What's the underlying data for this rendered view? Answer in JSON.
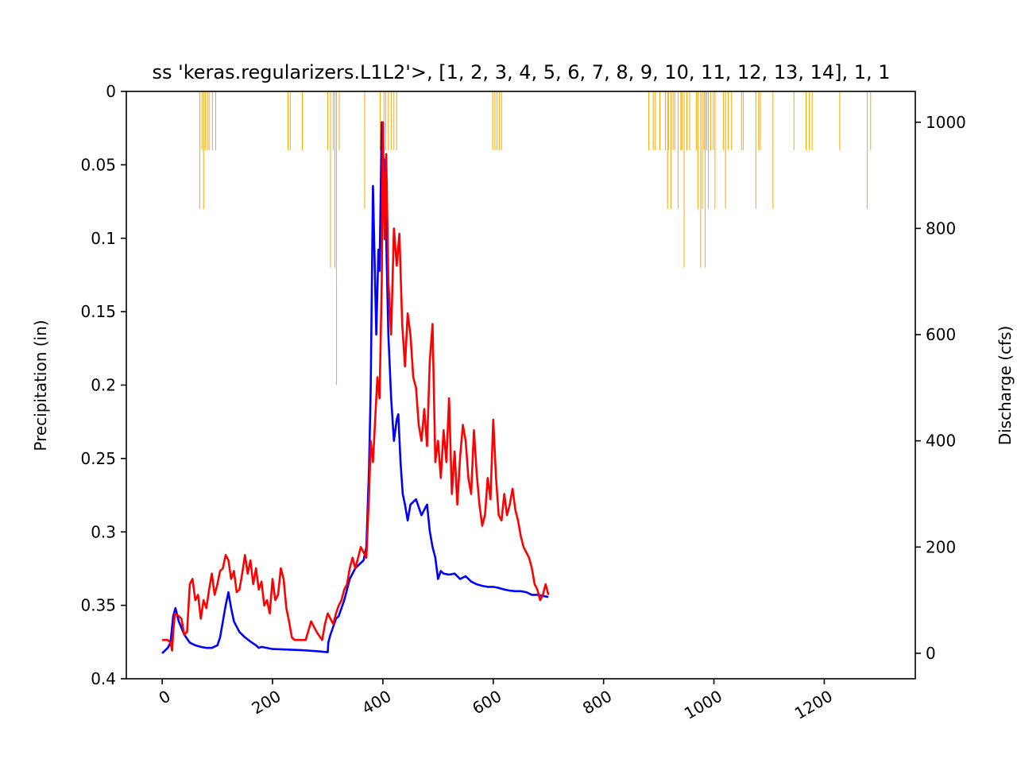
{
  "chart_data": {
    "type": "line",
    "title": "ss 'keras.regularizers.L1L2'>, [1, 2, 3, 4, 5, 6, 7, 8, 9, 10, 11, 12, 13, 14], 1, 1",
    "ylabel_left": "Precipitation (in)",
    "ylabel_right": "Discharge (cfs)",
    "xlim": [
      -65,
      1365
    ],
    "ylim_left": [
      0.4,
      0
    ],
    "ylim_right": [
      -48,
      1058
    ],
    "x_ticks": [
      0,
      200,
      400,
      600,
      800,
      1000,
      1200
    ],
    "y_left_ticks": [
      0,
      0.05,
      0.1,
      0.15,
      0.2,
      0.25,
      0.3,
      0.35,
      0.4
    ],
    "y_left_tick_labels": [
      "0",
      "0.05",
      "0.1",
      "0.15",
      "0.2",
      "0.25",
      "0.3",
      "0.35",
      "0.4"
    ],
    "y_right_ticks": [
      0,
      200,
      400,
      600,
      800,
      1000
    ],
    "grid": false,
    "precipitation": {
      "color": "#FFA500",
      "x": [
        68,
        72,
        75,
        78,
        82,
        85,
        91,
        97,
        228,
        232,
        254,
        300,
        305,
        310,
        313,
        316,
        321,
        367,
        395,
        402,
        405,
        410,
        415,
        420,
        425,
        599,
        603,
        607,
        611,
        615,
        882,
        890,
        894,
        902,
        912,
        916,
        918,
        922,
        926,
        929,
        935,
        940,
        942,
        946,
        951,
        956,
        968,
        971,
        976,
        979,
        982,
        984,
        987,
        990,
        994,
        999,
        1002,
        1017,
        1021,
        1026,
        1032,
        1050,
        1053,
        1076,
        1081,
        1084,
        1107,
        1145,
        1167,
        1173,
        1178,
        1228,
        1278,
        1284
      ],
      "values": [
        0.08,
        0.04,
        0.08,
        0.04,
        0.04,
        0.04,
        0.04,
        0.04,
        0.04,
        0.04,
        0.04,
        0.04,
        0.12,
        0.04,
        0.12,
        0.2,
        0.04,
        0.08,
        0.04,
        0.04,
        0.04,
        0.04,
        0.04,
        0.04,
        0.04,
        0.04,
        0.04,
        0.04,
        0.04,
        0.04,
        0.04,
        0.04,
        0.04,
        0.04,
        0.04,
        0.08,
        0.04,
        0.08,
        0.04,
        0.04,
        0.08,
        0.04,
        0.04,
        0.12,
        0.04,
        0.04,
        0.04,
        0.08,
        0.12,
        0.08,
        0.04,
        0.12,
        0.04,
        0.08,
        0.04,
        0.04,
        0.08,
        0.04,
        0.08,
        0.04,
        0.04,
        0.04,
        0.04,
        0.08,
        0.04,
        0.04,
        0.08,
        0.04,
        0.04,
        0.04,
        0.04,
        0.04,
        0.08,
        0.04
      ]
    },
    "series": [
      {
        "color": "#0000FF",
        "axis": "right",
        "x": [
          0,
          5,
          10,
          15,
          20,
          24,
          30,
          40,
          50,
          60,
          70,
          80,
          90,
          100,
          105,
          110,
          115,
          120,
          125,
          130,
          140,
          150,
          160,
          170,
          175,
          180,
          200,
          250,
          280,
          300,
          301,
          305,
          310,
          315,
          320,
          325,
          330,
          340,
          350,
          360,
          365,
          370,
          375,
          378,
          382,
          388,
          392,
          394,
          398,
          401,
          403,
          406,
          410,
          415,
          420,
          425,
          428,
          432,
          436,
          440,
          445,
          450,
          460,
          470,
          480,
          485,
          490,
          495,
          500,
          505,
          510,
          520,
          530,
          540,
          550,
          560,
          570,
          580,
          590,
          600,
          610,
          620,
          630,
          640,
          650,
          660,
          670,
          680,
          690,
          700
        ],
        "values": [
          0,
          5,
          10,
          20,
          70,
          85,
          60,
          35,
          20,
          15,
          12,
          10,
          10,
          15,
          30,
          60,
          90,
          115,
          85,
          60,
          40,
          30,
          22,
          15,
          10,
          12,
          8,
          6,
          4,
          2,
          20,
          35,
          50,
          65,
          70,
          85,
          100,
          140,
          160,
          170,
          175,
          200,
          350,
          500,
          880,
          600,
          760,
          720,
          1000,
          850,
          930,
          780,
          600,
          480,
          400,
          440,
          450,
          360,
          300,
          280,
          250,
          280,
          290,
          260,
          280,
          230,
          200,
          180,
          140,
          155,
          150,
          148,
          150,
          140,
          145,
          135,
          130,
          127,
          125,
          125,
          123,
          120,
          118,
          117,
          117,
          115,
          110,
          110,
          108,
          106
        ]
      },
      {
        "color": "#FF0000",
        "axis": "right",
        "x": [
          0,
          10,
          15,
          18,
          20,
          23,
          30,
          35,
          40,
          45,
          50,
          55,
          60,
          65,
          70,
          75,
          80,
          85,
          90,
          95,
          100,
          105,
          110,
          115,
          120,
          125,
          130,
          135,
          140,
          145,
          150,
          155,
          160,
          165,
          170,
          175,
          180,
          185,
          190,
          195,
          200,
          205,
          210,
          215,
          220,
          225,
          230,
          235,
          240,
          245,
          250,
          255,
          260,
          270,
          280,
          290,
          295,
          300,
          305,
          310,
          315,
          320,
          325,
          330,
          335,
          340,
          345,
          350,
          355,
          360,
          365,
          370,
          375,
          378,
          382,
          385,
          390,
          394,
          398,
          400,
          403,
          406,
          410,
          415,
          420,
          425,
          430,
          435,
          440,
          445,
          450,
          455,
          460,
          465,
          470,
          475,
          480,
          485,
          490,
          495,
          500,
          505,
          510,
          515,
          520,
          525,
          530,
          535,
          540,
          545,
          550,
          555,
          560,
          565,
          570,
          575,
          580,
          585,
          590,
          595,
          600,
          605,
          610,
          615,
          620,
          625,
          630,
          635,
          640,
          645,
          650,
          655,
          660,
          665,
          670,
          675,
          680,
          685,
          690,
          695,
          700
        ],
        "values": [
          25,
          25,
          20,
          5,
          40,
          75,
          70,
          65,
          35,
          40,
          130,
          140,
          100,
          110,
          65,
          100,
          85,
          120,
          150,
          110,
          130,
          155,
          160,
          185,
          175,
          140,
          155,
          115,
          120,
          150,
          185,
          150,
          175,
          130,
          160,
          120,
          135,
          90,
          100,
          75,
          140,
          100,
          110,
          160,
          140,
          85,
          60,
          30,
          25,
          25,
          25,
          25,
          25,
          60,
          40,
          25,
          55,
          75,
          65,
          55,
          75,
          90,
          100,
          120,
          130,
          160,
          180,
          160,
          180,
          200,
          190,
          180,
          300,
          400,
          360,
          420,
          520,
          480,
          700,
          1000,
          780,
          940,
          700,
          600,
          800,
          730,
          790,
          620,
          540,
          640,
          600,
          520,
          500,
          430,
          400,
          460,
          390,
          550,
          620,
          360,
          400,
          330,
          420,
          360,
          480,
          300,
          380,
          280,
          370,
          430,
          400,
          330,
          300,
          420,
          340,
          280,
          240,
          260,
          330,
          290,
          440,
          330,
          260,
          250,
          300,
          260,
          280,
          310,
          270,
          250,
          220,
          200,
          190,
          180,
          160,
          130,
          120,
          100,
          110,
          130,
          110
        ]
      }
    ]
  }
}
